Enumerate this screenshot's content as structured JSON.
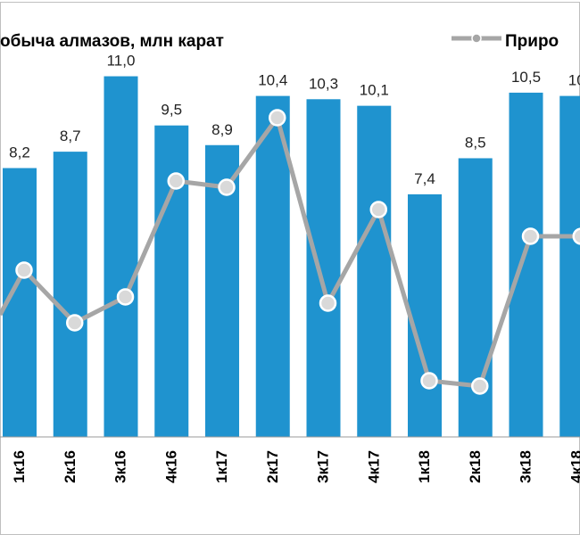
{
  "chart_data": {
    "type": "bar",
    "categories": [
      "1к16",
      "2к16",
      "3к16",
      "4к16",
      "1к17",
      "2к17",
      "3к17",
      "4к17",
      "1к18",
      "2к18",
      "3к18",
      "4к18"
    ],
    "series": [
      {
        "name": "обыча алмазов, млн карат",
        "type": "bar",
        "values": [
          8.2,
          8.7,
          11.0,
          9.5,
          8.9,
          10.4,
          10.3,
          10.1,
          7.4,
          8.5,
          10.5,
          10.4
        ],
        "labels": [
          "8,2",
          "8,7",
          "11,0",
          "9,5",
          "8,9",
          "10,4",
          "10,3",
          "10,1",
          "7,4",
          "8,5",
          "10,5",
          "10"
        ],
        "color": "#1f93cf"
      },
      {
        "name": "Приро",
        "type": "line",
        "values": [
          303,
          362,
          333,
          203,
          210,
          132,
          340,
          235,
          427,
          433,
          265,
          265
        ],
        "color": "#a6a6a6"
      }
    ],
    "ylim": [
      0,
      13
    ],
    "grid": false,
    "legend_placement": "top"
  }
}
